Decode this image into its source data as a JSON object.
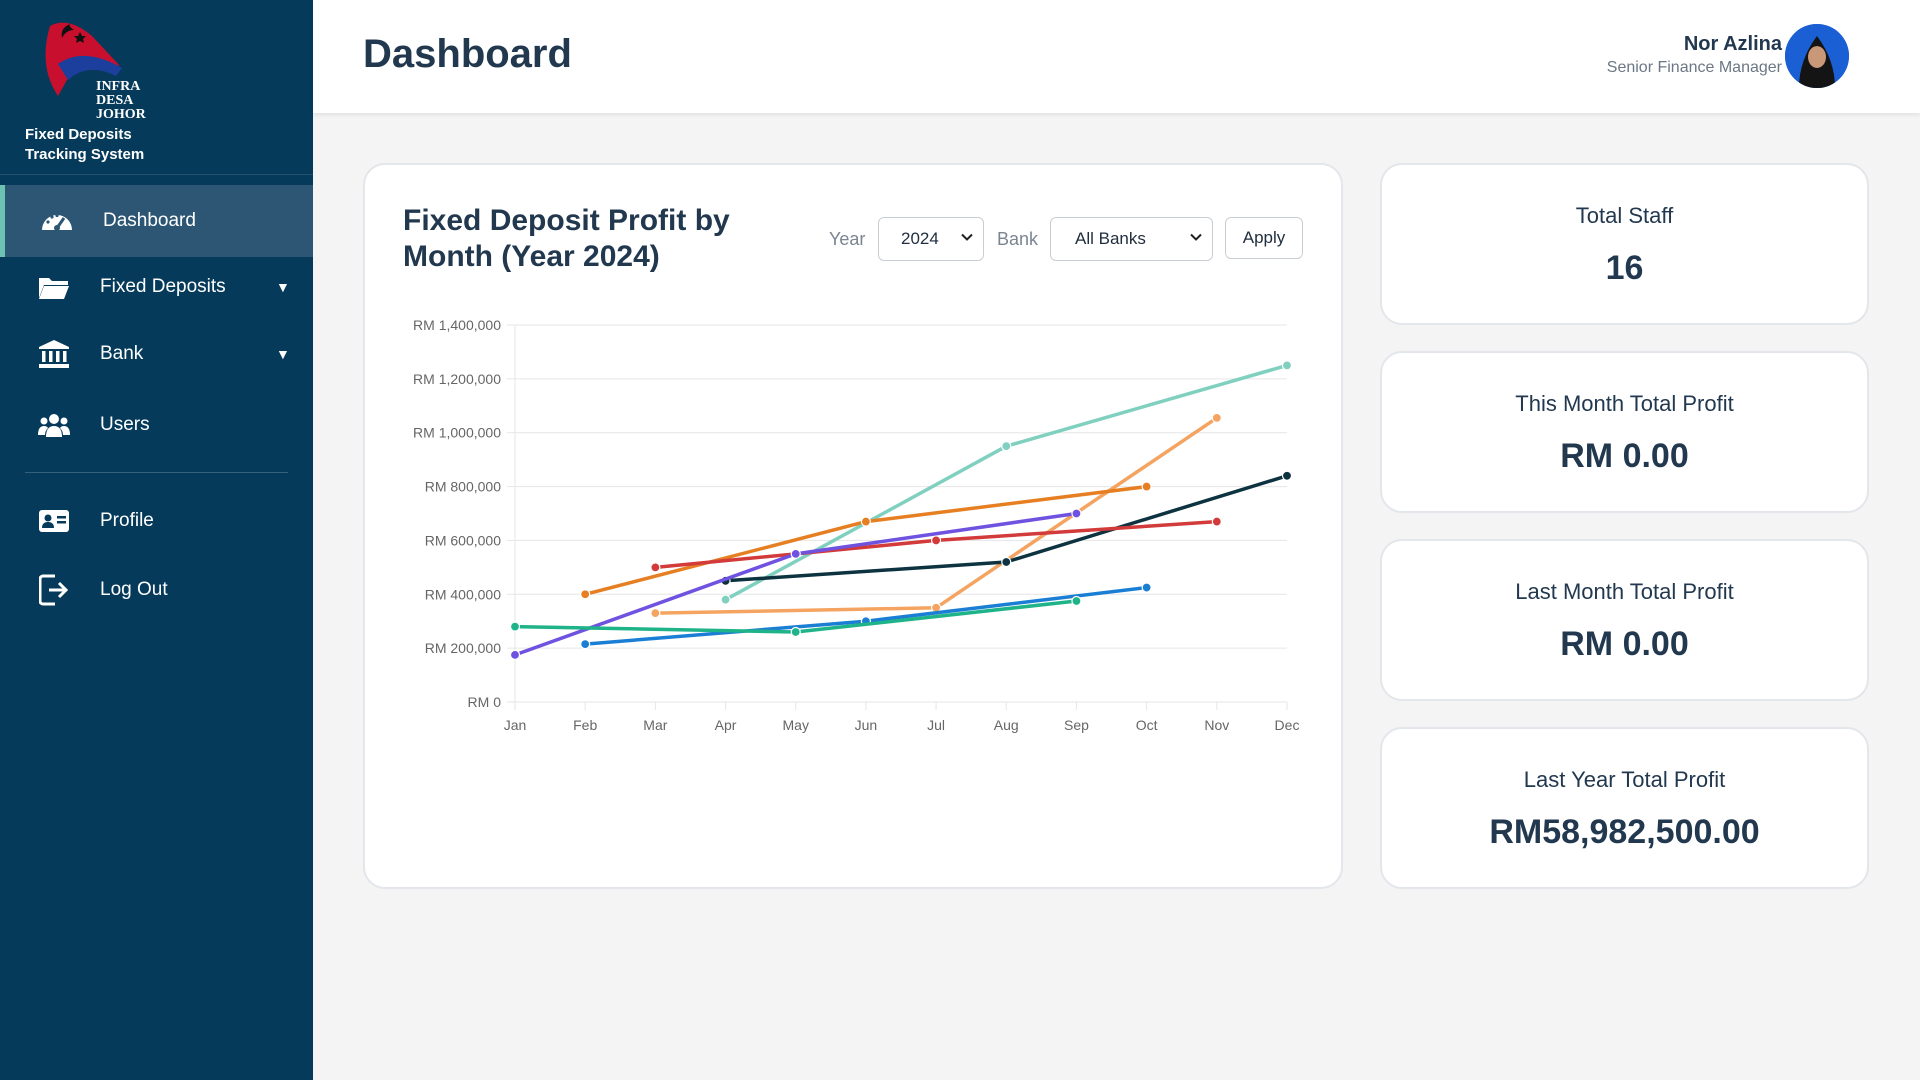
{
  "sidebar": {
    "logo_text_line1": "INFRA DESA",
    "logo_text_line2": "JOHOR",
    "system_title_line1": "Fixed Deposits",
    "system_title_line2": "Tracking System",
    "items": [
      {
        "label": "Dashboard",
        "icon": "speedometer-icon",
        "active": true
      },
      {
        "label": "Fixed Deposits",
        "icon": "folder-icon",
        "has_submenu": true
      },
      {
        "label": "Bank",
        "icon": "bank-icon",
        "has_submenu": true
      },
      {
        "label": "Users",
        "icon": "users-icon"
      },
      {
        "label": "Profile",
        "icon": "id-card-icon"
      },
      {
        "label": "Log Out",
        "icon": "logout-icon"
      }
    ],
    "caret": "▼"
  },
  "header": {
    "title": "Dashboard",
    "user_name": "Nor Azlina",
    "user_role": "Senior Finance Manager"
  },
  "chart_card": {
    "title": "Fixed Deposit Profit by Month (Year 2024)",
    "year_label": "Year",
    "year_value": "2024",
    "bank_label": "Bank",
    "bank_value": "All Banks",
    "apply_label": "Apply"
  },
  "stats": [
    {
      "label": "Total Staff",
      "value": "16"
    },
    {
      "label": "This Month Total Profit",
      "value": "RM 0.00"
    },
    {
      "label": "Last Month Total Profit",
      "value": "RM 0.00"
    },
    {
      "label": "Last Year Total Profit",
      "value": "RM58,982,500.00"
    }
  ],
  "colors": {
    "sidebar_bg": "#053a5a",
    "active_bg": "#2c5673",
    "active_accent": "#6cc3b4"
  },
  "chart_data": {
    "type": "line",
    "categories": [
      "Jan",
      "Feb",
      "Mar",
      "Apr",
      "May",
      "Jun",
      "Jul",
      "Aug",
      "Sep",
      "Oct",
      "Nov",
      "Dec"
    ],
    "y_ticks": [
      "RM 0",
      "RM 200,000",
      "RM 400,000",
      "RM 600,000",
      "RM 800,000",
      "RM 1,000,000",
      "RM 1,200,000",
      "RM 1,400,000"
    ],
    "ylim": [
      0,
      1400000
    ],
    "grid": true,
    "legend": "none",
    "series": [
      {
        "color": "#80d0c0",
        "values": [
          null,
          null,
          null,
          380000,
          null,
          null,
          null,
          950000,
          null,
          null,
          null,
          1250000
        ]
      },
      {
        "color": "#f4a460",
        "values": [
          null,
          null,
          330000,
          null,
          null,
          null,
          350000,
          null,
          null,
          null,
          1055000,
          null
        ]
      },
      {
        "color": "#0d3340",
        "values": [
          null,
          null,
          null,
          450000,
          null,
          null,
          null,
          520000,
          null,
          null,
          null,
          840000
        ]
      },
      {
        "color": "#e67e22",
        "values": [
          null,
          400000,
          null,
          null,
          null,
          670000,
          null,
          null,
          null,
          800000,
          null,
          null
        ]
      },
      {
        "color": "#d33a3a",
        "values": [
          null,
          null,
          500000,
          null,
          null,
          null,
          600000,
          null,
          null,
          null,
          670000,
          null
        ]
      },
      {
        "color": "#6f52e0",
        "values": [
          175000,
          null,
          null,
          null,
          550000,
          null,
          null,
          null,
          700000,
          null,
          null,
          null
        ]
      },
      {
        "color": "#1a7fd4",
        "values": [
          null,
          215000,
          null,
          null,
          null,
          300000,
          null,
          null,
          null,
          425000,
          null,
          null
        ]
      },
      {
        "color": "#1fb38a",
        "values": [
          280000,
          null,
          null,
          null,
          260000,
          null,
          null,
          null,
          375000,
          null,
          null,
          null
        ]
      }
    ]
  }
}
